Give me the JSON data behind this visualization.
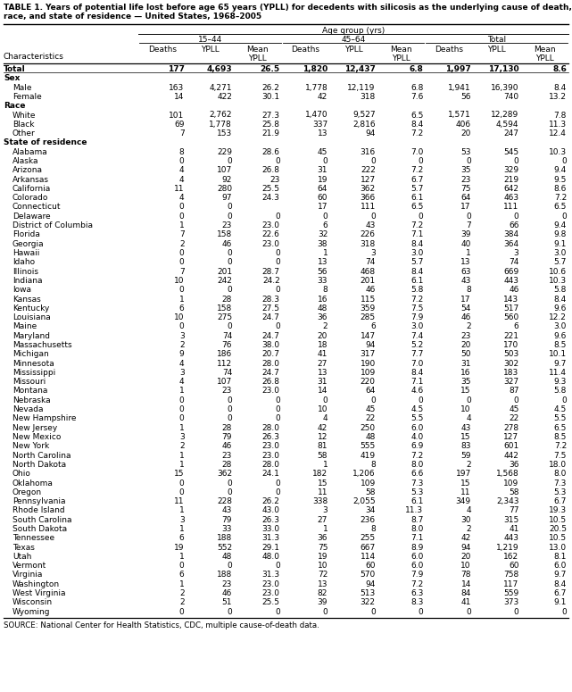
{
  "title_line1": "TABLE 1. Years of potential life lost before age 65 years (YPLL) for decedents with silicosis as the underlying cause of death, by sex,",
  "title_line2": "race, and state of residence — United States, 1968–2005",
  "source": "SOURCE: National Center for Health Statistics, CDC, multiple cause-of-death data.",
  "col_header_1": "Age group (yrs)",
  "col_header_2a": "15–44",
  "col_header_2b": "45–64",
  "col_header_2c": "Total",
  "sub_headers": [
    "Deaths",
    "YPLL",
    "Mean\nYPLL",
    "Deaths",
    "YPLL",
    "Mean\nYPLL",
    "Deaths",
    "YPLL",
    "Mean\nYPLL"
  ],
  "rows": [
    [
      "Total",
      "177",
      "4,693",
      "26.5",
      "1,820",
      "12,437",
      "6.8",
      "1,997",
      "17,130",
      "8.6"
    ],
    [
      "Sex",
      "",
      "",
      "",
      "",
      "",
      "",
      "",
      "",
      ""
    ],
    [
      "Male",
      "163",
      "4,271",
      "26.2",
      "1,778",
      "12,119",
      "6.8",
      "1,941",
      "16,390",
      "8.4"
    ],
    [
      "Female",
      "14",
      "422",
      "30.1",
      "42",
      "318",
      "7.6",
      "56",
      "740",
      "13.2"
    ],
    [
      "Race",
      "",
      "",
      "",
      "",
      "",
      "",
      "",
      "",
      ""
    ],
    [
      "White",
      "101",
      "2,762",
      "27.3",
      "1,470",
      "9,527",
      "6.5",
      "1,571",
      "12,289",
      "7.8"
    ],
    [
      "Black",
      "69",
      "1,778",
      "25.8",
      "337",
      "2,816",
      "8.4",
      "406",
      "4,594",
      "11.3"
    ],
    [
      "Other",
      "7",
      "153",
      "21.9",
      "13",
      "94",
      "7.2",
      "20",
      "247",
      "12.4"
    ],
    [
      "State of residence",
      "",
      "",
      "",
      "",
      "",
      "",
      "",
      "",
      ""
    ],
    [
      "Alabama",
      "8",
      "229",
      "28.6",
      "45",
      "316",
      "7.0",
      "53",
      "545",
      "10.3"
    ],
    [
      "Alaska",
      "0",
      "0",
      "0",
      "0",
      "0",
      "0",
      "0",
      "0",
      "0"
    ],
    [
      "Arizona",
      "4",
      "107",
      "26.8",
      "31",
      "222",
      "7.2",
      "35",
      "329",
      "9.4"
    ],
    [
      "Arkansas",
      "4",
      "92",
      "23",
      "19",
      "127",
      "6.7",
      "23",
      "219",
      "9.5"
    ],
    [
      "California",
      "11",
      "280",
      "25.5",
      "64",
      "362",
      "5.7",
      "75",
      "642",
      "8.6"
    ],
    [
      "Colorado",
      "4",
      "97",
      "24.3",
      "60",
      "366",
      "6.1",
      "64",
      "463",
      "7.2"
    ],
    [
      "Connecticut",
      "0",
      "0",
      "",
      "17",
      "111",
      "6.5",
      "17",
      "111",
      "6.5"
    ],
    [
      "Delaware",
      "0",
      "0",
      "0",
      "0",
      "0",
      "0",
      "0",
      "0",
      "0"
    ],
    [
      "District of Columbia",
      "1",
      "23",
      "23.0",
      "6",
      "43",
      "7.2",
      "7",
      "66",
      "9.4"
    ],
    [
      "Florida",
      "7",
      "158",
      "22.6",
      "32",
      "226",
      "7.1",
      "39",
      "384",
      "9.8"
    ],
    [
      "Georgia",
      "2",
      "46",
      "23.0",
      "38",
      "318",
      "8.4",
      "40",
      "364",
      "9.1"
    ],
    [
      "Hawaii",
      "0",
      "0",
      "0",
      "1",
      "3",
      "3.0",
      "1",
      "3",
      "3.0"
    ],
    [
      "Idaho",
      "0",
      "0",
      "0",
      "13",
      "74",
      "5.7",
      "13",
      "74",
      "5.7"
    ],
    [
      "Illinois",
      "7",
      "201",
      "28.7",
      "56",
      "468",
      "8.4",
      "63",
      "669",
      "10.6"
    ],
    [
      "Indiana",
      "10",
      "242",
      "24.2",
      "33",
      "201",
      "6.1",
      "43",
      "443",
      "10.3"
    ],
    [
      "Iowa",
      "0",
      "0",
      "0",
      "8",
      "46",
      "5.8",
      "8",
      "46",
      "5.8"
    ],
    [
      "Kansas",
      "1",
      "28",
      "28.3",
      "16",
      "115",
      "7.2",
      "17",
      "143",
      "8.4"
    ],
    [
      "Kentucky",
      "6",
      "158",
      "27.5",
      "48",
      "359",
      "7.5",
      "54",
      "517",
      "9.6"
    ],
    [
      "Louisiana",
      "10",
      "275",
      "24.7",
      "36",
      "285",
      "7.9",
      "46",
      "560",
      "12.2"
    ],
    [
      "Maine",
      "0",
      "0",
      "0",
      "2",
      "6",
      "3.0",
      "2",
      "6",
      "3.0"
    ],
    [
      "Maryland",
      "3",
      "74",
      "24.7",
      "20",
      "147",
      "7.4",
      "23",
      "221",
      "9.6"
    ],
    [
      "Massachusetts",
      "2",
      "76",
      "38.0",
      "18",
      "94",
      "5.2",
      "20",
      "170",
      "8.5"
    ],
    [
      "Michigan",
      "9",
      "186",
      "20.7",
      "41",
      "317",
      "7.7",
      "50",
      "503",
      "10.1"
    ],
    [
      "Minnesota",
      "4",
      "112",
      "28.0",
      "27",
      "190",
      "7.0",
      "31",
      "302",
      "9.7"
    ],
    [
      "Mississippi",
      "3",
      "74",
      "24.7",
      "13",
      "109",
      "8.4",
      "16",
      "183",
      "11.4"
    ],
    [
      "Missouri",
      "4",
      "107",
      "26.8",
      "31",
      "220",
      "7.1",
      "35",
      "327",
      "9.3"
    ],
    [
      "Montana",
      "1",
      "23",
      "23.0",
      "14",
      "64",
      "4.6",
      "15",
      "87",
      "5.8"
    ],
    [
      "Nebraska",
      "0",
      "0",
      "0",
      "0",
      "0",
      "0",
      "0",
      "0",
      "0"
    ],
    [
      "Nevada",
      "0",
      "0",
      "0",
      "10",
      "45",
      "4.5",
      "10",
      "45",
      "4.5"
    ],
    [
      "New Hampshire",
      "0",
      "0",
      "0",
      "4",
      "22",
      "5.5",
      "4",
      "22",
      "5.5"
    ],
    [
      "New Jersey",
      "1",
      "28",
      "28.0",
      "42",
      "250",
      "6.0",
      "43",
      "278",
      "6.5"
    ],
    [
      "New Mexico",
      "3",
      "79",
      "26.3",
      "12",
      "48",
      "4.0",
      "15",
      "127",
      "8.5"
    ],
    [
      "New York",
      "2",
      "46",
      "23.0",
      "81",
      "555",
      "6.9",
      "83",
      "601",
      "7.2"
    ],
    [
      "North Carolina",
      "1",
      "23",
      "23.0",
      "58",
      "419",
      "7.2",
      "59",
      "442",
      "7.5"
    ],
    [
      "North Dakota",
      "1",
      "28",
      "28.0",
      "1",
      "8",
      "8.0",
      "2",
      "36",
      "18.0"
    ],
    [
      "Ohio",
      "15",
      "362",
      "24.1",
      "182",
      "1,206",
      "6.6",
      "197",
      "1,568",
      "8.0"
    ],
    [
      "Oklahoma",
      "0",
      "0",
      "0",
      "15",
      "109",
      "7.3",
      "15",
      "109",
      "7.3"
    ],
    [
      "Oregon",
      "0",
      "0",
      "0",
      "11",
      "58",
      "5.3",
      "11",
      "58",
      "5.3"
    ],
    [
      "Pennsylvania",
      "11",
      "228",
      "26.2",
      "338",
      "2,055",
      "6.1",
      "349",
      "2,343",
      "6.7"
    ],
    [
      "Rhode Island",
      "1",
      "43",
      "43.0",
      "3",
      "34",
      "11.3",
      "4",
      "77",
      "19.3"
    ],
    [
      "South Carolina",
      "3",
      "79",
      "26.3",
      "27",
      "236",
      "8.7",
      "30",
      "315",
      "10.5"
    ],
    [
      "South Dakota",
      "1",
      "33",
      "33.0",
      "1",
      "8",
      "8.0",
      "2",
      "41",
      "20.5"
    ],
    [
      "Tennessee",
      "6",
      "188",
      "31.3",
      "36",
      "255",
      "7.1",
      "42",
      "443",
      "10.5"
    ],
    [
      "Texas",
      "19",
      "552",
      "29.1",
      "75",
      "667",
      "8.9",
      "94",
      "1,219",
      "13.0"
    ],
    [
      "Utah",
      "1",
      "48",
      "48.0",
      "19",
      "114",
      "6.0",
      "20",
      "162",
      "8.1"
    ],
    [
      "Vermont",
      "0",
      "0",
      "0",
      "10",
      "60",
      "6.0",
      "10",
      "60",
      "6.0"
    ],
    [
      "Virginia",
      "6",
      "188",
      "31.3",
      "72",
      "570",
      "7.9",
      "78",
      "758",
      "9.7"
    ],
    [
      "Washington",
      "1",
      "23",
      "23.0",
      "13",
      "94",
      "7.2",
      "14",
      "117",
      "8.4"
    ],
    [
      "West Virginia",
      "2",
      "46",
      "23.0",
      "82",
      "513",
      "6.3",
      "84",
      "559",
      "6.7"
    ],
    [
      "Wisconsin",
      "2",
      "51",
      "25.5",
      "39",
      "322",
      "8.3",
      "41",
      "373",
      "9.1"
    ],
    [
      "Wyoming",
      "0",
      "0",
      "0",
      "0",
      "0",
      "0",
      "0",
      "0",
      "0"
    ]
  ],
  "section_rows": [
    1,
    4,
    8
  ],
  "bold_rows": [
    0
  ],
  "indent_rows": [
    2,
    3,
    5,
    6,
    7,
    9,
    10,
    11,
    12,
    13,
    14,
    15,
    16,
    17,
    18,
    19,
    20,
    21,
    22,
    23,
    24,
    25,
    26,
    27,
    28,
    29,
    30,
    31,
    32,
    33,
    34,
    35,
    36,
    37,
    38,
    39,
    40,
    41,
    42,
    43,
    44,
    45,
    46,
    47,
    48,
    49,
    50,
    51,
    52,
    53,
    54,
    55,
    56,
    57,
    58,
    59
  ],
  "font_size": 6.5,
  "title_font_size": 6.5,
  "source_font_size": 6.2
}
